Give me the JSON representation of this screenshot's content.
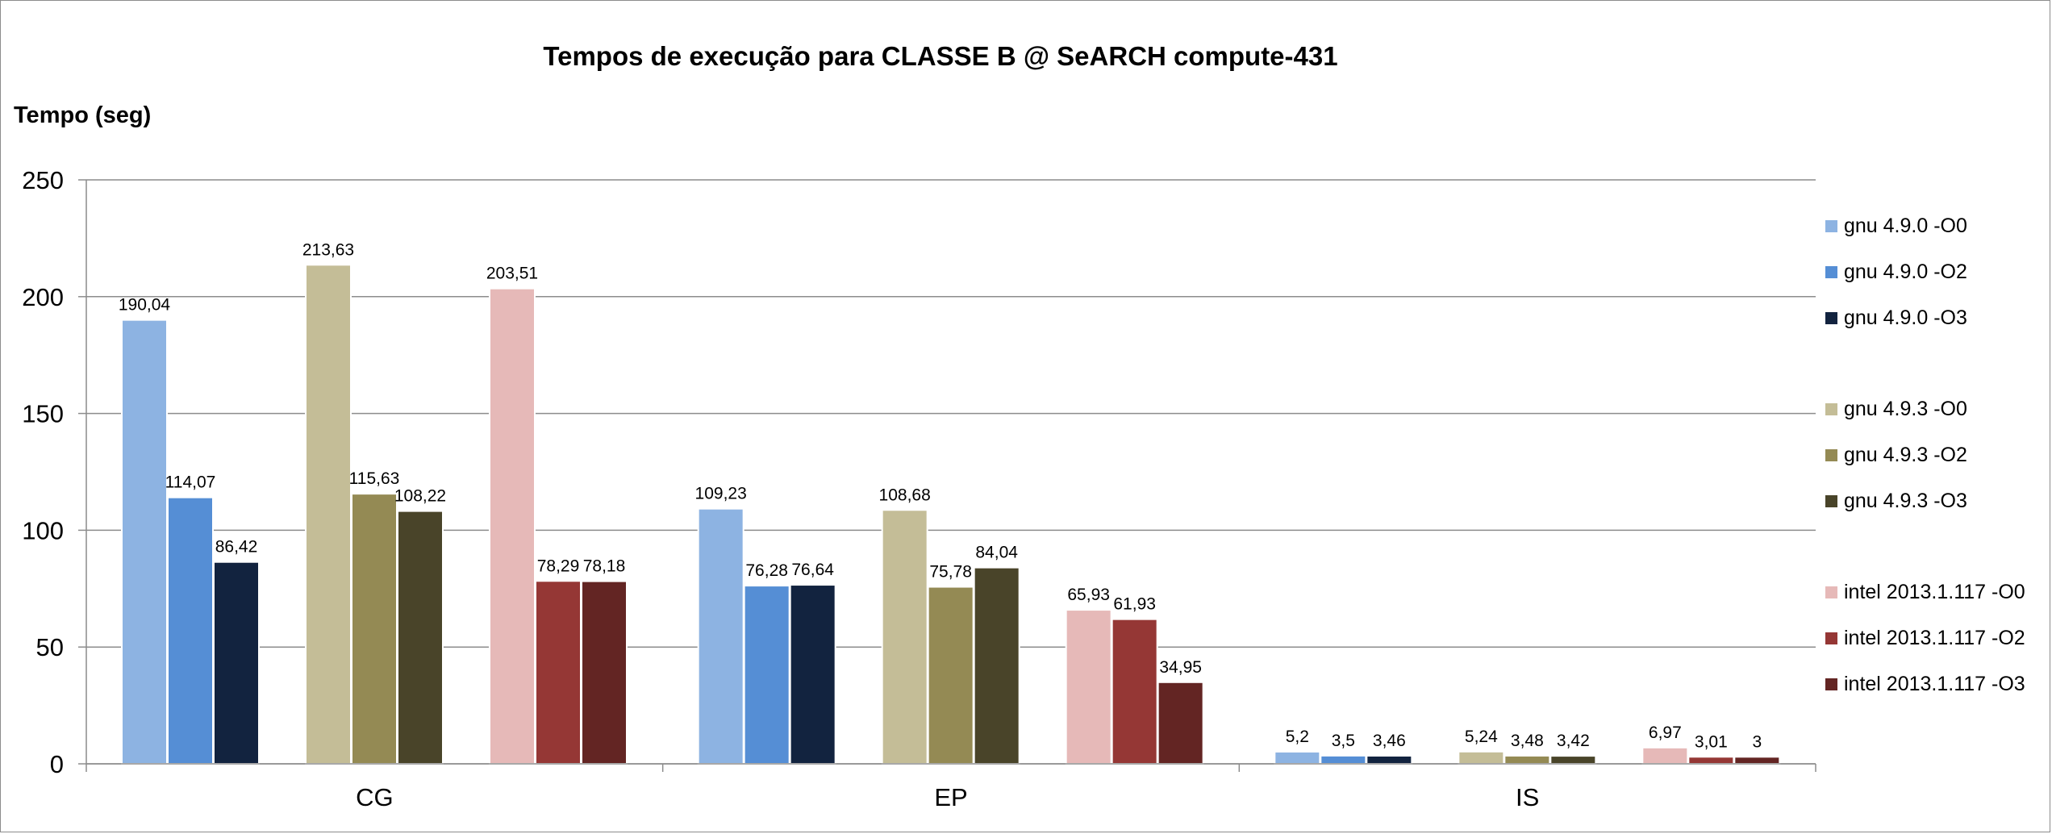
{
  "chart_data": {
    "type": "bar",
    "title": "Tempos de execução para CLASSE B @ SeARCH compute-431",
    "ylabel": "Tempo (seg)",
    "xlabel": "",
    "ylim": [
      0,
      250
    ],
    "yticks": [
      0,
      50,
      100,
      150,
      200,
      250
    ],
    "grid": true,
    "legend_position": "right",
    "categories": [
      "CG",
      "EP",
      "IS"
    ],
    "series": [
      {
        "name": "gnu 4.9.0 -O0",
        "color": "#8db3e2",
        "values": [
          190.04,
          109.23,
          5.2
        ],
        "labels": [
          "190,04",
          "109,23",
          "5,2"
        ]
      },
      {
        "name": "gnu 4.9.0 -O2",
        "color": "#558ed5",
        "values": [
          114.07,
          76.28,
          3.5
        ],
        "labels": [
          "114,07",
          "76,28",
          "3,5"
        ]
      },
      {
        "name": "gnu 4.9.0 -O3",
        "color": "#12233f",
        "values": [
          86.42,
          76.64,
          3.46
        ],
        "labels": [
          "86,42",
          "76,64",
          "3,46"
        ]
      },
      {
        "name": "gnu 4.9.3 -O0",
        "color": "#c4bd97",
        "values": [
          213.63,
          108.68,
          5.24
        ],
        "labels": [
          "213,63",
          "108,68",
          "5,24"
        ]
      },
      {
        "name": "gnu 4.9.3 -O2",
        "color": "#948a54",
        "values": [
          115.63,
          75.78,
          3.48
        ],
        "labels": [
          "115,63",
          "75,78",
          "3,48"
        ]
      },
      {
        "name": "gnu 4.9.3 -O3",
        "color": "#494429",
        "values": [
          108.22,
          84.04,
          3.42
        ],
        "labels": [
          "108,22",
          "84,04",
          "3,42"
        ]
      },
      {
        "name": "intel 2013.1.117 -O0",
        "color": "#e6b9b8",
        "values": [
          203.51,
          65.93,
          6.97
        ],
        "labels": [
          "203,51",
          "65,93",
          "6,97"
        ]
      },
      {
        "name": "intel 2013.1.117 -O2",
        "color": "#953735",
        "values": [
          78.29,
          61.93,
          3.01
        ],
        "labels": [
          "78,29",
          "61,93",
          "3,01"
        ]
      },
      {
        "name": "intel 2013.1.117 -O3",
        "color": "#632523",
        "values": [
          78.18,
          34.95,
          3.0
        ],
        "labels": [
          "78,18",
          "34,95",
          "3"
        ]
      }
    ]
  }
}
